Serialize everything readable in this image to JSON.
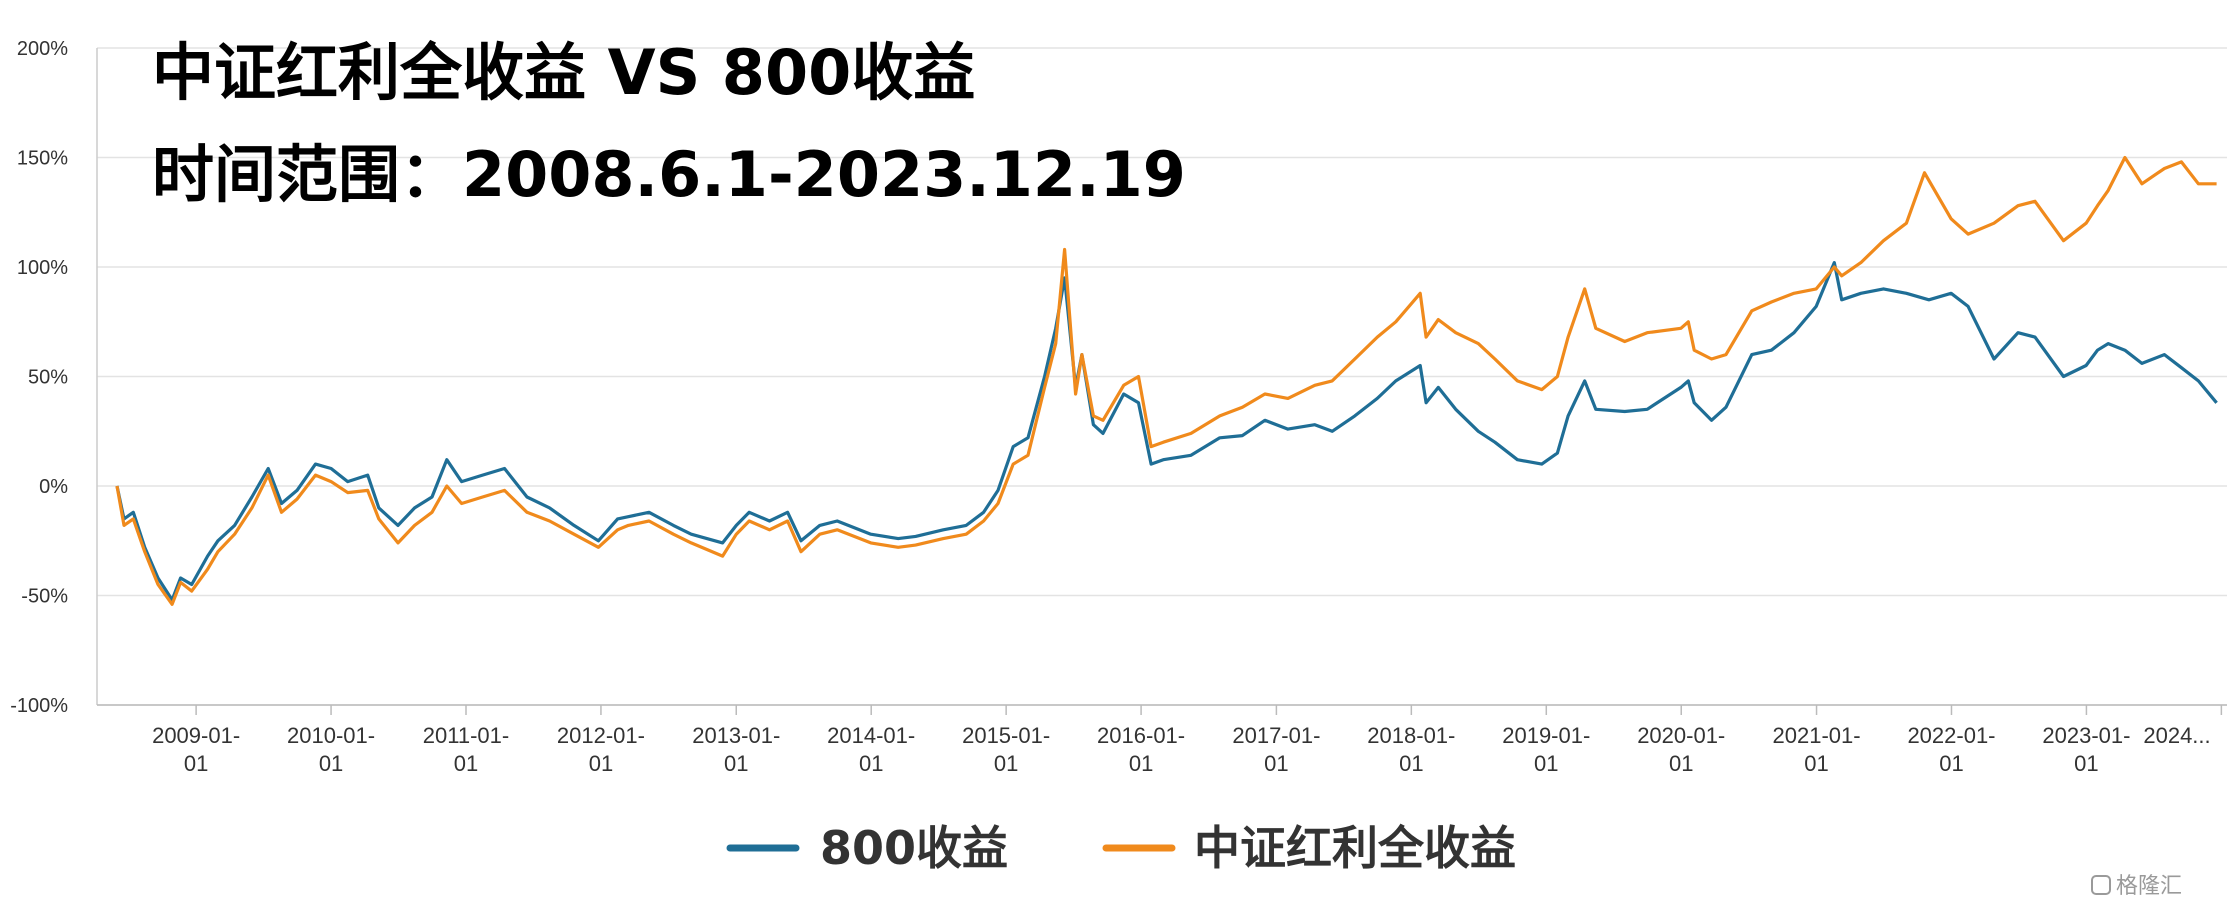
{
  "chart_data": {
    "type": "line",
    "title": "中证红利全收益 VS 800收益",
    "subtitle": "时间范围：2008.6.1-2023.12.19",
    "y_unit_suffix": "%",
    "ylim": [
      -100,
      200
    ],
    "y_ticks": [
      -100,
      -50,
      0,
      50,
      100,
      150,
      200
    ],
    "y_tick_labels": [
      "-100%",
      "-50%",
      "0%",
      "50%",
      "100%",
      "150%",
      "200%"
    ],
    "grid": true,
    "x_range": [
      "2008-06-01",
      "2023-12-19"
    ],
    "x_ticks": [
      {
        "date": "2009-01-01",
        "line1": "2009-01-",
        "line2": "01"
      },
      {
        "date": "2010-01-01",
        "line1": "2010-01-",
        "line2": "01"
      },
      {
        "date": "2011-01-01",
        "line1": "2011-01-",
        "line2": "01"
      },
      {
        "date": "2012-01-01",
        "line1": "2012-01-",
        "line2": "01"
      },
      {
        "date": "2013-01-01",
        "line1": "2013-01-",
        "line2": "01"
      },
      {
        "date": "2014-01-01",
        "line1": "2014-01-",
        "line2": "01"
      },
      {
        "date": "2015-01-01",
        "line1": "2015-01-",
        "line2": "01"
      },
      {
        "date": "2016-01-01",
        "line1": "2016-01-",
        "line2": "01"
      },
      {
        "date": "2017-01-01",
        "line1": "2017-01-",
        "line2": "01"
      },
      {
        "date": "2018-01-01",
        "line1": "2018-01-",
        "line2": "01"
      },
      {
        "date": "2019-01-01",
        "line1": "2019-01-",
        "line2": "01"
      },
      {
        "date": "2020-01-01",
        "line1": "2020-01-",
        "line2": "01"
      },
      {
        "date": "2021-01-01",
        "line1": "2021-01-",
        "line2": "01"
      },
      {
        "date": "2022-01-01",
        "line1": "2022-01-",
        "line2": "01"
      },
      {
        "date": "2023-01-01",
        "line1": "2023-01-",
        "line2": "01"
      },
      {
        "date": "2024-01-01",
        "line1": "2024...",
        "line2": ""
      }
    ],
    "legend_position": "bottom-center",
    "series": [
      {
        "name": "800收益",
        "color": "#1f6e96",
        "points": [
          [
            "2008-06-01",
            0
          ],
          [
            "2008-06-20",
            -15
          ],
          [
            "2008-07-15",
            -12
          ],
          [
            "2008-08-15",
            -28
          ],
          [
            "2008-09-20",
            -42
          ],
          [
            "2008-10-28",
            -52
          ],
          [
            "2008-11-20",
            -42
          ],
          [
            "2008-12-20",
            -45
          ],
          [
            "2009-02-01",
            -32
          ],
          [
            "2009-03-01",
            -25
          ],
          [
            "2009-04-15",
            -18
          ],
          [
            "2009-06-01",
            -5
          ],
          [
            "2009-07-15",
            8
          ],
          [
            "2009-08-20",
            -8
          ],
          [
            "2009-10-01",
            -2
          ],
          [
            "2009-11-20",
            10
          ],
          [
            "2010-01-01",
            8
          ],
          [
            "2010-02-15",
            2
          ],
          [
            "2010-04-10",
            5
          ],
          [
            "2010-05-10",
            -10
          ],
          [
            "2010-07-01",
            -18
          ],
          [
            "2010-08-15",
            -10
          ],
          [
            "2010-10-01",
            -5
          ],
          [
            "2010-11-10",
            12
          ],
          [
            "2010-12-20",
            2
          ],
          [
            "2011-02-15",
            5
          ],
          [
            "2011-04-15",
            8
          ],
          [
            "2011-06-15",
            -5
          ],
          [
            "2011-08-15",
            -10
          ],
          [
            "2011-10-20",
            -18
          ],
          [
            "2011-12-25",
            -25
          ],
          [
            "2012-02-15",
            -15
          ],
          [
            "2012-03-15",
            -14
          ],
          [
            "2012-05-10",
            -12
          ],
          [
            "2012-07-15",
            -18
          ],
          [
            "2012-09-01",
            -22
          ],
          [
            "2012-11-25",
            -26
          ],
          [
            "2013-01-01",
            -18
          ],
          [
            "2013-02-05",
            -12
          ],
          [
            "2013-04-01",
            -16
          ],
          [
            "2013-05-20",
            -12
          ],
          [
            "2013-06-25",
            -25
          ],
          [
            "2013-08-15",
            -18
          ],
          [
            "2013-10-01",
            -16
          ],
          [
            "2013-12-31",
            -22
          ],
          [
            "2014-03-15",
            -24
          ],
          [
            "2014-05-01",
            -23
          ],
          [
            "2014-07-15",
            -20
          ],
          [
            "2014-09-15",
            -18
          ],
          [
            "2014-11-01",
            -12
          ],
          [
            "2014-12-10",
            -2
          ],
          [
            "2015-01-20",
            18
          ],
          [
            "2015-03-01",
            22
          ],
          [
            "2015-04-15",
            50
          ],
          [
            "2015-05-15",
            72
          ],
          [
            "2015-06-08",
            95
          ],
          [
            "2015-07-08",
            45
          ],
          [
            "2015-07-25",
            60
          ],
          [
            "2015-08-25",
            28
          ],
          [
            "2015-09-20",
            24
          ],
          [
            "2015-11-15",
            42
          ],
          [
            "2015-12-25",
            38
          ],
          [
            "2016-01-28",
            10
          ],
          [
            "2016-03-01",
            12
          ],
          [
            "2016-05-15",
            14
          ],
          [
            "2016-08-01",
            22
          ],
          [
            "2016-10-01",
            23
          ],
          [
            "2016-12-01",
            30
          ],
          [
            "2017-02-01",
            26
          ],
          [
            "2017-04-15",
            28
          ],
          [
            "2017-06-01",
            25
          ],
          [
            "2017-08-01",
            32
          ],
          [
            "2017-10-01",
            40
          ],
          [
            "2017-11-20",
            48
          ],
          [
            "2018-01-25",
            55
          ],
          [
            "2018-02-10",
            38
          ],
          [
            "2018-03-15",
            45
          ],
          [
            "2018-05-01",
            35
          ],
          [
            "2018-07-01",
            25
          ],
          [
            "2018-08-15",
            20
          ],
          [
            "2018-10-15",
            12
          ],
          [
            "2018-12-20",
            10
          ],
          [
            "2019-01-31",
            15
          ],
          [
            "2019-03-01",
            32
          ],
          [
            "2019-04-15",
            48
          ],
          [
            "2019-05-15",
            35
          ],
          [
            "2019-08-01",
            34
          ],
          [
            "2019-10-01",
            35
          ],
          [
            "2019-12-31",
            45
          ],
          [
            "2020-01-20",
            48
          ],
          [
            "2020-02-05",
            38
          ],
          [
            "2020-03-23",
            30
          ],
          [
            "2020-05-01",
            36
          ],
          [
            "2020-07-10",
            60
          ],
          [
            "2020-09-01",
            62
          ],
          [
            "2020-11-01",
            70
          ],
          [
            "2020-12-31",
            82
          ],
          [
            "2021-02-18",
            102
          ],
          [
            "2021-03-10",
            85
          ],
          [
            "2021-05-01",
            88
          ],
          [
            "2021-07-01",
            90
          ],
          [
            "2021-09-01",
            88
          ],
          [
            "2021-11-01",
            85
          ],
          [
            "2021-12-31",
            88
          ],
          [
            "2022-02-15",
            82
          ],
          [
            "2022-04-26",
            58
          ],
          [
            "2022-06-30",
            70
          ],
          [
            "2022-08-15",
            68
          ],
          [
            "2022-10-31",
            50
          ],
          [
            "2022-12-31",
            55
          ],
          [
            "2023-01-31",
            62
          ],
          [
            "2023-03-01",
            65
          ],
          [
            "2023-04-15",
            62
          ],
          [
            "2023-05-31",
            56
          ],
          [
            "2023-07-31",
            60
          ],
          [
            "2023-09-15",
            54
          ],
          [
            "2023-10-31",
            48
          ],
          [
            "2023-12-19",
            38
          ]
        ]
      },
      {
        "name": "中证红利全收益",
        "color": "#f08a1c",
        "points": [
          [
            "2008-06-01",
            0
          ],
          [
            "2008-06-20",
            -18
          ],
          [
            "2008-07-15",
            -15
          ],
          [
            "2008-08-15",
            -30
          ],
          [
            "2008-09-20",
            -45
          ],
          [
            "2008-10-28",
            -54
          ],
          [
            "2008-11-20",
            -44
          ],
          [
            "2008-12-20",
            -48
          ],
          [
            "2009-02-01",
            -38
          ],
          [
            "2009-03-01",
            -30
          ],
          [
            "2009-04-15",
            -22
          ],
          [
            "2009-06-01",
            -10
          ],
          [
            "2009-07-15",
            5
          ],
          [
            "2009-08-20",
            -12
          ],
          [
            "2009-10-01",
            -6
          ],
          [
            "2009-11-20",
            5
          ],
          [
            "2010-01-01",
            2
          ],
          [
            "2010-02-15",
            -3
          ],
          [
            "2010-04-10",
            -2
          ],
          [
            "2010-05-10",
            -15
          ],
          [
            "2010-07-01",
            -26
          ],
          [
            "2010-08-15",
            -18
          ],
          [
            "2010-10-01",
            -12
          ],
          [
            "2010-11-10",
            0
          ],
          [
            "2010-12-20",
            -8
          ],
          [
            "2011-02-15",
            -5
          ],
          [
            "2011-04-15",
            -2
          ],
          [
            "2011-06-15",
            -12
          ],
          [
            "2011-08-15",
            -16
          ],
          [
            "2011-10-20",
            -22
          ],
          [
            "2011-12-25",
            -28
          ],
          [
            "2012-02-15",
            -20
          ],
          [
            "2012-03-15",
            -18
          ],
          [
            "2012-05-10",
            -16
          ],
          [
            "2012-07-15",
            -22
          ],
          [
            "2012-09-01",
            -26
          ],
          [
            "2012-11-25",
            -32
          ],
          [
            "2013-01-01",
            -22
          ],
          [
            "2013-02-05",
            -16
          ],
          [
            "2013-04-01",
            -20
          ],
          [
            "2013-05-20",
            -16
          ],
          [
            "2013-06-25",
            -30
          ],
          [
            "2013-08-15",
            -22
          ],
          [
            "2013-10-01",
            -20
          ],
          [
            "2013-12-31",
            -26
          ],
          [
            "2014-03-15",
            -28
          ],
          [
            "2014-05-01",
            -27
          ],
          [
            "2014-07-15",
            -24
          ],
          [
            "2014-09-15",
            -22
          ],
          [
            "2014-11-01",
            -16
          ],
          [
            "2014-12-10",
            -8
          ],
          [
            "2015-01-20",
            10
          ],
          [
            "2015-03-01",
            14
          ],
          [
            "2015-04-15",
            45
          ],
          [
            "2015-05-15",
            65
          ],
          [
            "2015-06-08",
            108
          ],
          [
            "2015-07-08",
            42
          ],
          [
            "2015-07-25",
            60
          ],
          [
            "2015-08-25",
            32
          ],
          [
            "2015-09-20",
            30
          ],
          [
            "2015-11-15",
            46
          ],
          [
            "2015-12-25",
            50
          ],
          [
            "2016-01-28",
            18
          ],
          [
            "2016-03-01",
            20
          ],
          [
            "2016-05-15",
            24
          ],
          [
            "2016-08-01",
            32
          ],
          [
            "2016-10-01",
            36
          ],
          [
            "2016-12-01",
            42
          ],
          [
            "2017-02-01",
            40
          ],
          [
            "2017-04-15",
            46
          ],
          [
            "2017-06-01",
            48
          ],
          [
            "2017-08-01",
            58
          ],
          [
            "2017-10-01",
            68
          ],
          [
            "2017-11-20",
            75
          ],
          [
            "2018-01-25",
            88
          ],
          [
            "2018-02-10",
            68
          ],
          [
            "2018-03-15",
            76
          ],
          [
            "2018-05-01",
            70
          ],
          [
            "2018-07-01",
            65
          ],
          [
            "2018-08-15",
            58
          ],
          [
            "2018-10-15",
            48
          ],
          [
            "2018-12-20",
            44
          ],
          [
            "2019-01-31",
            50
          ],
          [
            "2019-03-01",
            68
          ],
          [
            "2019-04-15",
            90
          ],
          [
            "2019-05-15",
            72
          ],
          [
            "2019-08-01",
            66
          ],
          [
            "2019-10-01",
            70
          ],
          [
            "2019-12-31",
            72
          ],
          [
            "2020-01-20",
            75
          ],
          [
            "2020-02-05",
            62
          ],
          [
            "2020-03-23",
            58
          ],
          [
            "2020-05-01",
            60
          ],
          [
            "2020-07-10",
            80
          ],
          [
            "2020-09-01",
            84
          ],
          [
            "2020-11-01",
            88
          ],
          [
            "2020-12-31",
            90
          ],
          [
            "2021-02-18",
            100
          ],
          [
            "2021-03-10",
            96
          ],
          [
            "2021-05-01",
            102
          ],
          [
            "2021-07-01",
            112
          ],
          [
            "2021-09-01",
            120
          ],
          [
            "2021-10-20",
            143
          ],
          [
            "2021-12-31",
            122
          ],
          [
            "2022-02-15",
            115
          ],
          [
            "2022-04-26",
            120
          ],
          [
            "2022-06-30",
            128
          ],
          [
            "2022-08-15",
            130
          ],
          [
            "2022-10-31",
            112
          ],
          [
            "2022-12-31",
            120
          ],
          [
            "2023-01-31",
            128
          ],
          [
            "2023-03-01",
            135
          ],
          [
            "2023-04-15",
            150
          ],
          [
            "2023-05-31",
            138
          ],
          [
            "2023-07-31",
            145
          ],
          [
            "2023-09-15",
            148
          ],
          [
            "2023-10-31",
            138
          ],
          [
            "2023-12-19",
            138
          ]
        ]
      }
    ]
  },
  "watermark": "格隆汇"
}
